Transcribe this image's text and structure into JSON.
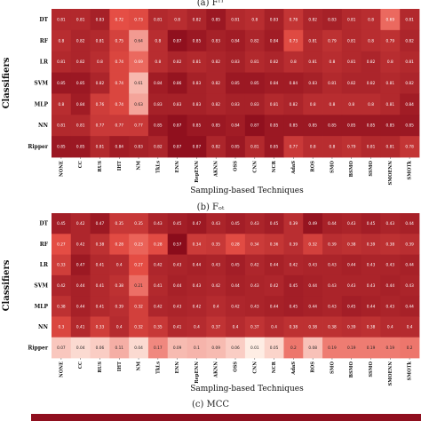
{
  "chart_data": [
    {
      "type": "heatmap",
      "title": "(a) Fᴵᵀ",
      "xlabel": "Sampling-based Techniques",
      "ylabel": "Classifiers",
      "rows": [
        "DT",
        "RF",
        "LR",
        "SVM",
        "MLP",
        "NN",
        "Ripper"
      ],
      "columns": [
        "NONE",
        "CC",
        "RUS",
        "IHT",
        "NM",
        "TkLs",
        "ENN",
        "RepENN",
        "AKNN",
        "OSS",
        "CNN",
        "NCR",
        "AdaS",
        "ROS",
        "SMO",
        "BSMO",
        "SSMO",
        "SMOENN",
        "SMOTk"
      ],
      "values": [
        [
          0.81,
          0.81,
          0.83,
          0.72,
          0.73,
          0.81,
          0.8,
          0.82,
          0.85,
          0.81,
          0.8,
          0.83,
          0.78,
          0.82,
          0.83,
          0.81,
          0.8,
          0.69,
          0.81
        ],
        [
          0.8,
          0.82,
          0.81,
          0.75,
          0.64,
          0.8,
          0.87,
          0.85,
          0.83,
          0.84,
          0.82,
          0.84,
          0.73,
          0.81,
          0.79,
          0.81,
          0.8,
          0.79,
          0.82
        ],
        [
          0.81,
          0.82,
          0.8,
          0.74,
          0.69,
          0.8,
          0.82,
          0.81,
          0.82,
          0.83,
          0.81,
          0.82,
          0.8,
          0.81,
          0.8,
          0.81,
          0.82,
          0.8,
          0.81
        ],
        [
          0.85,
          0.85,
          0.82,
          0.74,
          0.61,
          0.84,
          0.86,
          0.83,
          0.82,
          0.85,
          0.85,
          0.84,
          0.84,
          0.83,
          0.81,
          0.82,
          0.82,
          0.81,
          0.82
        ],
        [
          0.8,
          0.84,
          0.76,
          0.74,
          0.63,
          0.83,
          0.83,
          0.83,
          0.82,
          0.83,
          0.83,
          0.81,
          0.82,
          0.8,
          0.8,
          0.8,
          0.8,
          0.81,
          0.84
        ],
        [
          0.81,
          0.81,
          0.77,
          0.77,
          0.77,
          0.85,
          0.87,
          0.85,
          0.85,
          0.84,
          0.87,
          0.85,
          0.85,
          0.85,
          0.85,
          0.85,
          0.85,
          0.85,
          0.85
        ],
        [
          0.85,
          0.85,
          0.81,
          0.84,
          0.83,
          0.82,
          0.87,
          0.87,
          0.82,
          0.85,
          0.81,
          0.85,
          0.77,
          0.8,
          0.8,
          0.79,
          0.81,
          0.81,
          0.78
        ]
      ],
      "color_scale": {
        "low": "#fff3ea",
        "high": "#8a0c1b",
        "vmin": 0.55,
        "vmax": 0.88
      }
    },
    {
      "type": "heatmap",
      "title": "(b) Fₒₜ",
      "xlabel": "Sampling-based Techniques",
      "ylabel": "Classifiers",
      "rows": [
        "DT",
        "RF",
        "LR",
        "SVM",
        "MLP",
        "NN",
        "Ripper"
      ],
      "columns": [
        "NONE",
        "CC",
        "RUS",
        "IHT",
        "NM",
        "TkLs",
        "ENN",
        "RepENN",
        "AKNN",
        "OSS",
        "CNN",
        "NCR",
        "AdaS",
        "ROS",
        "SMO",
        "BSMO",
        "SSMO",
        "SMOENN",
        "SMOTk"
      ],
      "values": [
        [
          0.45,
          0.42,
          0.47,
          0.35,
          0.35,
          0.43,
          0.45,
          0.47,
          0.43,
          0.45,
          0.43,
          0.45,
          0.39,
          0.49,
          0.44,
          0.43,
          0.45,
          0.43,
          0.44
        ],
        [
          0.27,
          0.42,
          0.38,
          0.28,
          0.23,
          0.28,
          0.57,
          0.34,
          0.35,
          0.28,
          0.34,
          0.36,
          0.39,
          0.32,
          0.39,
          0.38,
          0.39,
          0.38,
          0.39
        ],
        [
          0.33,
          0.47,
          0.41,
          0.4,
          0.27,
          0.42,
          0.43,
          0.44,
          0.43,
          0.45,
          0.42,
          0.44,
          0.42,
          0.43,
          0.43,
          0.44,
          0.43,
          0.43,
          0.44
        ],
        [
          0.42,
          0.44,
          0.41,
          0.38,
          0.21,
          0.41,
          0.44,
          0.43,
          0.42,
          0.44,
          0.43,
          0.42,
          0.45,
          0.44,
          0.43,
          0.43,
          0.43,
          0.44,
          0.43
        ],
        [
          0.38,
          0.44,
          0.41,
          0.39,
          0.32,
          0.42,
          0.43,
          0.42,
          0.4,
          0.42,
          0.43,
          0.44,
          0.45,
          0.44,
          0.43,
          0.45,
          0.44,
          0.43,
          0.44
        ],
        [
          0.3,
          0.41,
          0.33,
          0.4,
          0.32,
          0.35,
          0.41,
          0.4,
          0.37,
          0.4,
          0.37,
          0.4,
          0.38,
          0.38,
          0.38,
          0.39,
          0.38,
          0.4,
          0.4
        ],
        [
          0.07,
          0.04,
          0.06,
          0.11,
          0.04,
          0.17,
          0.09,
          0.1,
          0.09,
          0.06,
          0.01,
          0.05,
          0.2,
          0.08,
          0.19,
          0.19,
          0.19,
          0.19,
          0.2
        ]
      ],
      "color_scale": {
        "low": "#fff3ea",
        "high": "#8a0c1b",
        "vmin": 0.0,
        "vmax": 0.52
      }
    }
  ],
  "caption_c": "(c) MCC"
}
